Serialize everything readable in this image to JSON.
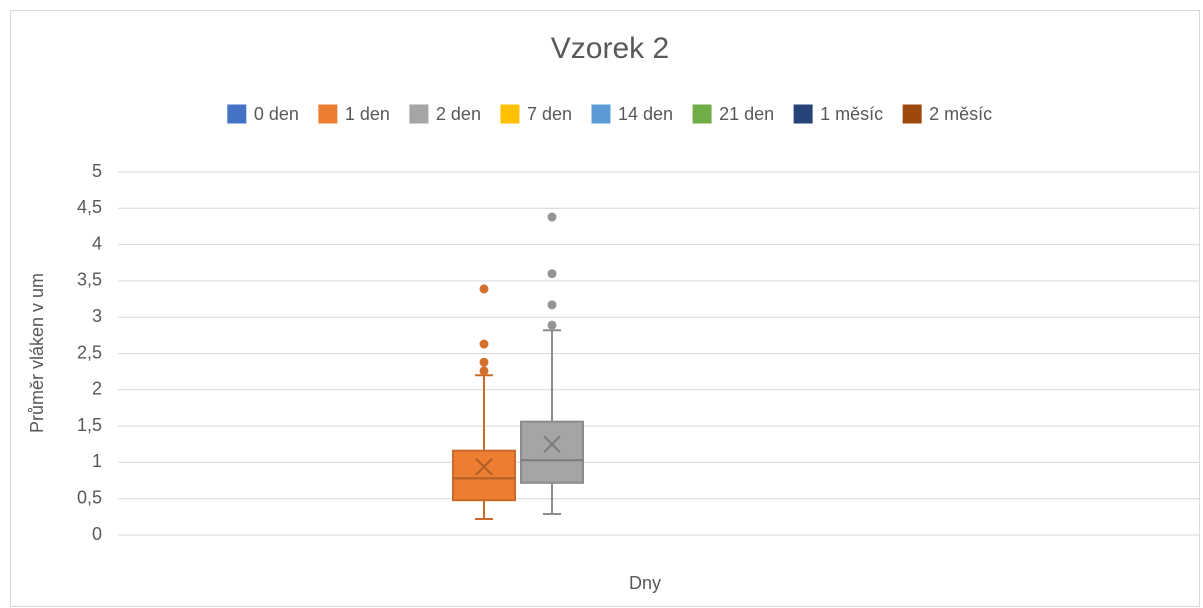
{
  "chart_data": {
    "type": "box",
    "title": "Vzorek 2",
    "x_label": "Dny",
    "y_label": "Průměr vláken v um",
    "ylim": [
      0,
      5
    ],
    "yticks": [
      0,
      {
        "value": 0.5,
        "label": "0,5"
      },
      1,
      {
        "value": 1.5,
        "label": "1,5"
      },
      2,
      {
        "value": 2.5,
        "label": "2,5"
      },
      3,
      {
        "value": 3.5,
        "label": "3,5"
      },
      4,
      {
        "value": 4.5,
        "label": "4,5"
      },
      5
    ],
    "grid": true,
    "legend": "top",
    "series": [
      {
        "name": "0 den",
        "color": "#4472c4"
      },
      {
        "name": "1 den",
        "color": "#ed7d31",
        "min": 0.22,
        "q1": 0.48,
        "median": 0.78,
        "q3": 1.16,
        "max": 2.2,
        "mean": 0.94,
        "outliers": [
          2.26,
          2.38,
          2.63,
          3.39
        ]
      },
      {
        "name": "2 den",
        "color": "#a5a5a5",
        "min": 0.29,
        "q1": 0.72,
        "median": 1.03,
        "q3": 1.56,
        "max": 2.82,
        "mean": 1.25,
        "outliers": [
          2.89,
          3.17,
          3.6,
          4.38
        ]
      },
      {
        "name": "7 den",
        "color": "#ffc000"
      },
      {
        "name": "14 den",
        "color": "#5b9bd5"
      },
      {
        "name": "21 den",
        "color": "#70ad47"
      },
      {
        "name": "1 měsíc",
        "color": "#264478"
      },
      {
        "name": "2 měsíc",
        "color": "#9e480e"
      }
    ]
  }
}
